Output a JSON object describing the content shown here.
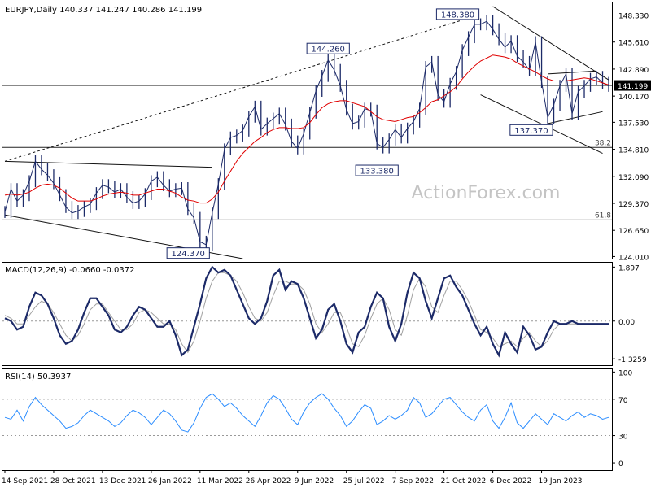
{
  "chart_data": {
    "type": "line",
    "price_panel": {
      "header": "EURJPY,Daily  140.337 141.247 140.286 141.199",
      "last_price_label": "141.199",
      "y_ticks": [
        "148.330",
        "145.610",
        "142.890",
        "140.170",
        "137.530",
        "134.810",
        "132.090",
        "129.370",
        "126.650",
        "124.010"
      ],
      "y_tick_values": [
        148.33,
        145.61,
        142.89,
        140.17,
        137.53,
        134.81,
        132.09,
        129.37,
        126.65,
        124.01
      ],
      "ylim": [
        123.8,
        149.6
      ],
      "last_price": 141.199,
      "watermark": "ActionForex.com",
      "annotations": [
        {
          "label": "148.380",
          "value": 148.38,
          "index": 78
        },
        {
          "label": "144.260",
          "value": 144.26,
          "index": 53
        },
        {
          "label": "133.380",
          "value": 133.38,
          "index": 61
        },
        {
          "label": "137.370",
          "value": 137.37,
          "index": 89
        },
        {
          "label": "124.370",
          "value": 124.37,
          "index": 33
        }
      ],
      "fib_levels": [
        {
          "label": "38.2",
          "value": 135.0
        },
        {
          "label": "61.8",
          "value": 127.7
        }
      ],
      "horizontal_line": 141.2,
      "series": [
        {
          "name": "price",
          "kind": "ohlc_approx",
          "color": "#1c2a68",
          "values": [
            128.5,
            130.8,
            129.6,
            130.2,
            131.6,
            133.6,
            132.8,
            132.2,
            131.4,
            130.2,
            129.0,
            128.4,
            128.6,
            129.0,
            129.3,
            130.4,
            131.2,
            131.0,
            130.5,
            130.8,
            130.0,
            129.4,
            129.6,
            130.3,
            131.6,
            132.0,
            131.2,
            130.6,
            130.8,
            130.9,
            128.8,
            127.9,
            125.5,
            125.2,
            128.4,
            131.3,
            134.8,
            136.0,
            136.2,
            136.7,
            138.1,
            139.1,
            136.8,
            137.4,
            137.9,
            138.4,
            137.3,
            135.6,
            134.9,
            136.4,
            138.5,
            140.7,
            142.2,
            143.8,
            142.8,
            141.2,
            138.8,
            137.4,
            137.6,
            138.9,
            138.7,
            135.4,
            135.0,
            135.8,
            136.8,
            136.0,
            136.9,
            137.6,
            138.9,
            143.1,
            143.6,
            140.3,
            139.6,
            141.4,
            142.6,
            144.8,
            146.1,
            147.4,
            147.4,
            147.7,
            146.9,
            145.9,
            145.1,
            145.7,
            144.2,
            143.6,
            142.8,
            145.6,
            141.6,
            138.0,
            139.3,
            141.2,
            142.4,
            138.4,
            140.6,
            141.2,
            141.9,
            142.1,
            141.5,
            141.2
          ]
        },
        {
          "name": "moving_average",
          "kind": "line",
          "color": "#e00000",
          "values": [
            130.2,
            130.3,
            130.2,
            130.3,
            130.5,
            130.9,
            131.2,
            131.3,
            131.2,
            130.9,
            130.4,
            129.9,
            129.6,
            129.6,
            129.6,
            129.8,
            130.1,
            130.3,
            130.4,
            130.5,
            130.4,
            130.2,
            130.2,
            130.4,
            130.6,
            130.8,
            130.8,
            130.6,
            130.4,
            130.0,
            129.7,
            129.6,
            129.4,
            129.4,
            129.8,
            130.5,
            131.6,
            132.6,
            133.6,
            134.4,
            135.0,
            135.6,
            136.0,
            136.5,
            136.8,
            137.0,
            137.0,
            136.9,
            136.9,
            137.0,
            137.5,
            138.3,
            139.0,
            139.4,
            139.6,
            139.7,
            139.7,
            139.5,
            139.3,
            139.1,
            138.6,
            138.1,
            137.8,
            137.7,
            137.6,
            137.8,
            138.0,
            138.1,
            138.5,
            139.0,
            139.6,
            139.8,
            140.2,
            140.6,
            141.1,
            141.9,
            142.6,
            143.2,
            143.7,
            144.0,
            144.3,
            144.2,
            144.1,
            143.9,
            143.5,
            143.2,
            142.9,
            142.6,
            142.2,
            141.9,
            141.7,
            141.7,
            141.7,
            141.8,
            141.9,
            142.0,
            141.9,
            141.7,
            141.5,
            141.3
          ]
        }
      ],
      "trendlines": [
        {
          "name": "upper-dotted",
          "style": "dotted",
          "from": [
            0,
            133.6
          ],
          "to": [
            78,
            148.4
          ]
        },
        {
          "name": "left-range-top",
          "style": "solid",
          "from": [
            0,
            133.6
          ],
          "to": [
            34,
            133.0
          ]
        },
        {
          "name": "left-range-bottom",
          "style": "solid",
          "from": [
            0,
            128.2
          ],
          "to": [
            39,
            123.8
          ]
        },
        {
          "name": "channel-top",
          "style": "solid",
          "from": [
            80,
            149.2
          ],
          "to": [
            99,
            141.8
          ]
        },
        {
          "name": "channel-bottom",
          "style": "solid",
          "from": [
            78,
            140.3
          ],
          "to": [
            98,
            134.4
          ]
        },
        {
          "name": "triangle-top",
          "style": "solid",
          "from": [
            89,
            142.4
          ],
          "to": [
            97,
            142.7
          ]
        },
        {
          "name": "triangle-bottom",
          "style": "solid",
          "from": [
            89,
            137.4
          ],
          "to": [
            98,
            138.6
          ]
        }
      ]
    },
    "macd_panel": {
      "header": "MACD(12,26,9) -0.0660 -0.0372",
      "y_ticks": [
        "1.897",
        "0.00",
        "-1.3259"
      ],
      "y_tick_values": [
        1.897,
        0.0,
        -1.3259
      ],
      "ylim": [
        -1.55,
        2.05
      ],
      "value_label": "0.00",
      "series": [
        {
          "name": "macd",
          "color": "#1c2a68",
          "values": [
            0.1,
            0.0,
            -0.3,
            -0.2,
            0.5,
            1.0,
            0.9,
            0.6,
            0.1,
            -0.5,
            -0.8,
            -0.7,
            -0.3,
            0.3,
            0.8,
            0.8,
            0.5,
            0.2,
            -0.3,
            -0.4,
            -0.2,
            0.2,
            0.5,
            0.4,
            0.1,
            -0.2,
            -0.2,
            0.0,
            -0.5,
            -1.2,
            -1.0,
            -0.2,
            0.6,
            1.5,
            1.9,
            1.7,
            1.8,
            1.6,
            1.1,
            0.6,
            0.1,
            -0.1,
            0.1,
            0.7,
            1.6,
            1.8,
            1.1,
            1.4,
            1.3,
            0.8,
            0.1,
            -0.6,
            -0.3,
            0.4,
            0.6,
            0.0,
            -0.8,
            -1.1,
            -0.4,
            -0.2,
            0.5,
            1.0,
            0.8,
            -0.2,
            -0.7,
            -0.1,
            1.0,
            1.7,
            1.5,
            0.7,
            0.1,
            0.8,
            1.5,
            1.6,
            1.2,
            0.9,
            0.4,
            -0.1,
            -0.5,
            -0.2,
            -0.8,
            -1.2,
            -0.4,
            -0.8,
            -1.1,
            -0.2,
            -0.5,
            -1.0,
            -0.9,
            -0.4,
            0.0,
            -0.1,
            -0.1,
            -0.0,
            -0.1,
            -0.1,
            -0.1,
            -0.1,
            -0.1,
            -0.1
          ]
        },
        {
          "name": "signal",
          "color": "#a0a0a0",
          "values": [
            0.2,
            0.1,
            -0.1,
            -0.1,
            0.2,
            0.5,
            0.7,
            0.6,
            0.3,
            -0.1,
            -0.5,
            -0.7,
            -0.5,
            -0.1,
            0.4,
            0.6,
            0.6,
            0.3,
            0.0,
            -0.3,
            -0.3,
            -0.1,
            0.3,
            0.4,
            0.3,
            0.1,
            -0.1,
            -0.1,
            -0.3,
            -0.8,
            -1.1,
            -0.7,
            0.0,
            0.8,
            1.4,
            1.7,
            1.7,
            1.6,
            1.4,
            1.0,
            0.5,
            0.1,
            0.0,
            0.3,
            0.9,
            1.4,
            1.4,
            1.3,
            1.3,
            1.1,
            0.6,
            -0.1,
            -0.4,
            -0.1,
            0.3,
            0.3,
            -0.2,
            -0.8,
            -0.9,
            -0.5,
            0.1,
            0.6,
            0.8,
            0.4,
            -0.3,
            -0.5,
            0.2,
            1.1,
            1.5,
            1.2,
            0.5,
            0.3,
            0.9,
            1.4,
            1.4,
            1.1,
            0.7,
            0.2,
            -0.3,
            -0.4,
            -0.6,
            -0.9,
            -0.8,
            -0.7,
            -0.9,
            -0.6,
            -0.4,
            -0.7,
            -0.9,
            -0.7,
            -0.3,
            -0.1,
            -0.1,
            -0.1,
            -0.1,
            -0.1,
            -0.1,
            -0.1,
            -0.1,
            -0.1
          ]
        }
      ]
    },
    "rsi_panel": {
      "header": "RSI(14) 50.3937",
      "y_ticks": [
        "100",
        "70",
        "30",
        "0"
      ],
      "y_tick_values": [
        100,
        70,
        30,
        0
      ],
      "ylim": [
        -8,
        103
      ],
      "dotted_levels": [
        70,
        30
      ],
      "series": [
        {
          "name": "rsi",
          "color": "#2a8cff",
          "values": [
            50,
            48,
            58,
            46,
            62,
            72,
            64,
            58,
            52,
            46,
            38,
            40,
            44,
            52,
            58,
            54,
            50,
            46,
            40,
            44,
            52,
            58,
            55,
            50,
            42,
            50,
            58,
            54,
            46,
            36,
            34,
            44,
            60,
            72,
            76,
            70,
            62,
            66,
            60,
            52,
            46,
            40,
            52,
            66,
            74,
            70,
            60,
            48,
            42,
            56,
            66,
            72,
            76,
            70,
            60,
            52,
            40,
            46,
            56,
            64,
            60,
            42,
            46,
            52,
            48,
            52,
            58,
            72,
            66,
            50,
            54,
            62,
            70,
            72,
            64,
            56,
            50,
            46,
            58,
            64,
            46,
            38,
            50,
            66,
            44,
            38,
            46,
            54,
            48,
            42,
            54,
            50,
            46,
            52,
            56,
            50,
            54,
            52,
            48,
            50
          ]
        }
      ]
    },
    "x_axis": {
      "labels": [
        "14 Sep 2021",
        "28 Oct 2021",
        "13 Dec 2021",
        "26 Jan 2022",
        "11 Mar 2022",
        "26 Apr 2022",
        "9 Jun 2022",
        "25 Jul 2022",
        "7 Sep 2022",
        "21 Oct 2022",
        "6 Dec 2022",
        "19 Jan 2023"
      ],
      "label_indices": [
        0,
        8,
        16,
        24,
        32,
        40,
        48,
        56,
        64,
        72,
        80,
        88
      ],
      "n_points": 100
    }
  }
}
